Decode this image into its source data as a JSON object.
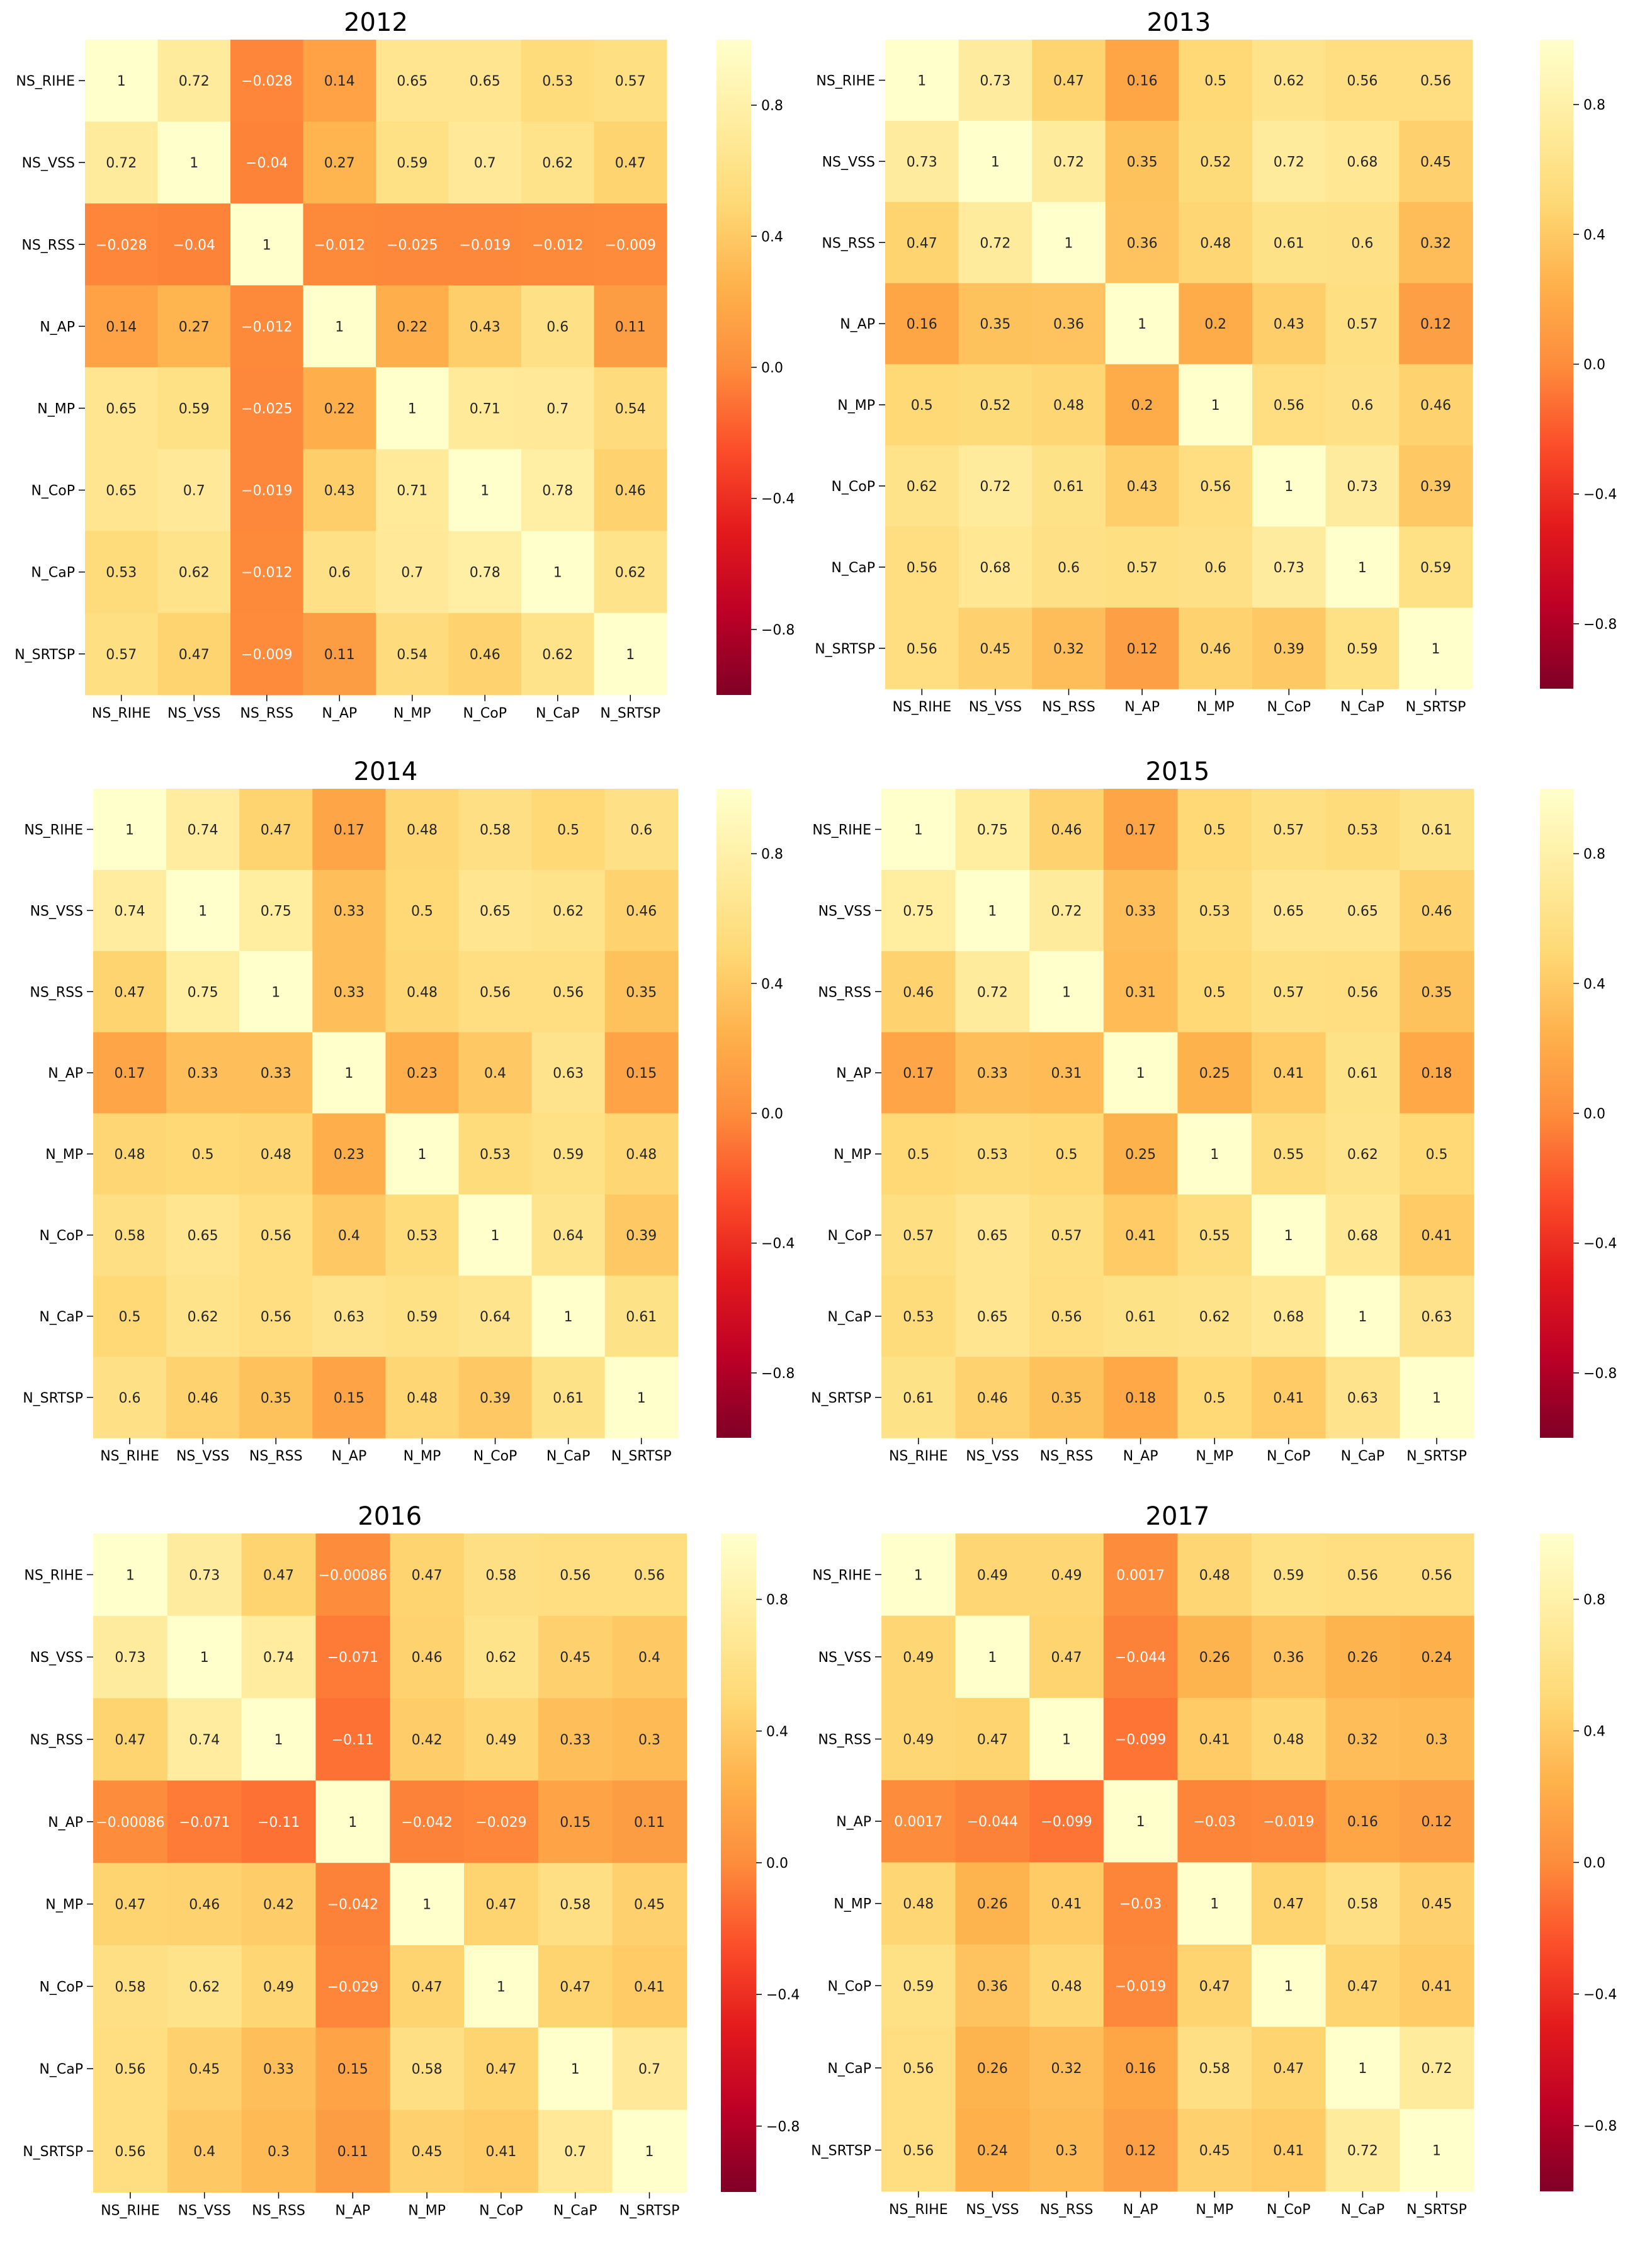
{
  "chart_data": [
    {
      "type": "heatmap",
      "title": "2012",
      "labels": [
        "NS_RIHE",
        "NS_VSS",
        "NS_RSS",
        "N_AP",
        "N_MP",
        "N_CoP",
        "N_CaP",
        "N_SRTSP"
      ],
      "values": [
        [
          "1",
          "0.72",
          "-0.028",
          "0.14",
          "0.65",
          "0.65",
          "0.53",
          "0.57"
        ],
        [
          "0.72",
          "1",
          "-0.04",
          "0.27",
          "0.59",
          "0.7",
          "0.62",
          "0.47"
        ],
        [
          "-0.028",
          "-0.04",
          "1",
          "-0.012",
          "-0.025",
          "-0.019",
          "-0.012",
          "-0.009"
        ],
        [
          "0.14",
          "0.27",
          "-0.012",
          "1",
          "0.22",
          "0.43",
          "0.6",
          "0.11"
        ],
        [
          "0.65",
          "0.59",
          "-0.025",
          "0.22",
          "1",
          "0.71",
          "0.7",
          "0.54"
        ],
        [
          "0.65",
          "0.7",
          "-0.019",
          "0.43",
          "0.71",
          "1",
          "0.78",
          "0.46"
        ],
        [
          "0.53",
          "0.62",
          "-0.012",
          "0.6",
          "0.7",
          "0.78",
          "1",
          "0.62"
        ],
        [
          "0.57",
          "0.47",
          "-0.009",
          "0.11",
          "0.54",
          "0.46",
          "0.62",
          "1"
        ]
      ],
      "colorbar": {
        "range": [
          -1,
          1
        ],
        "ticks": [
          "0.8",
          "0.4",
          "0.0",
          "−0.4",
          "−0.8"
        ],
        "tick_values": [
          0.8,
          0.4,
          0.0,
          -0.4,
          -0.8
        ],
        "colormap": "YlOrRd_r"
      }
    },
    {
      "type": "heatmap",
      "title": "2013",
      "labels": [
        "NS_RIHE",
        "NS_VSS",
        "NS_RSS",
        "N_AP",
        "N_MP",
        "N_CoP",
        "N_CaP",
        "N_SRTSP"
      ],
      "values": [
        [
          "1",
          "0.73",
          "0.47",
          "0.16",
          "0.5",
          "0.62",
          "0.56",
          "0.56"
        ],
        [
          "0.73",
          "1",
          "0.72",
          "0.35",
          "0.52",
          "0.72",
          "0.68",
          "0.45"
        ],
        [
          "0.47",
          "0.72",
          "1",
          "0.36",
          "0.48",
          "0.61",
          "0.6",
          "0.32"
        ],
        [
          "0.16",
          "0.35",
          "0.36",
          "1",
          "0.2",
          "0.43",
          "0.57",
          "0.12"
        ],
        [
          "0.5",
          "0.52",
          "0.48",
          "0.2",
          "1",
          "0.56",
          "0.6",
          "0.46"
        ],
        [
          "0.62",
          "0.72",
          "0.61",
          "0.43",
          "0.56",
          "1",
          "0.73",
          "0.39"
        ],
        [
          "0.56",
          "0.68",
          "0.6",
          "0.57",
          "0.6",
          "0.73",
          "1",
          "0.59"
        ],
        [
          "0.56",
          "0.45",
          "0.32",
          "0.12",
          "0.46",
          "0.39",
          "0.59",
          "1"
        ]
      ],
      "colorbar": {
        "range": [
          -1,
          1
        ],
        "ticks": [
          "0.8",
          "0.4",
          "0.0",
          "−0.4",
          "−0.8"
        ],
        "tick_values": [
          0.8,
          0.4,
          0.0,
          -0.4,
          -0.8
        ],
        "colormap": "YlOrRd_r"
      }
    },
    {
      "type": "heatmap",
      "title": "2014",
      "labels": [
        "NS_RIHE",
        "NS_VSS",
        "NS_RSS",
        "N_AP",
        "N_MP",
        "N_CoP",
        "N_CaP",
        "N_SRTSP"
      ],
      "values": [
        [
          "1",
          "0.74",
          "0.47",
          "0.17",
          "0.48",
          "0.58",
          "0.5",
          "0.6"
        ],
        [
          "0.74",
          "1",
          "0.75",
          "0.33",
          "0.5",
          "0.65",
          "0.62",
          "0.46"
        ],
        [
          "0.47",
          "0.75",
          "1",
          "0.33",
          "0.48",
          "0.56",
          "0.56",
          "0.35"
        ],
        [
          "0.17",
          "0.33",
          "0.33",
          "1",
          "0.23",
          "0.4",
          "0.63",
          "0.15"
        ],
        [
          "0.48",
          "0.5",
          "0.48",
          "0.23",
          "1",
          "0.53",
          "0.59",
          "0.48"
        ],
        [
          "0.58",
          "0.65",
          "0.56",
          "0.4",
          "0.53",
          "1",
          "0.64",
          "0.39"
        ],
        [
          "0.5",
          "0.62",
          "0.56",
          "0.63",
          "0.59",
          "0.64",
          "1",
          "0.61"
        ],
        [
          "0.6",
          "0.46",
          "0.35",
          "0.15",
          "0.48",
          "0.39",
          "0.61",
          "1"
        ]
      ],
      "colorbar": {
        "range": [
          -1,
          1
        ],
        "ticks": [
          "0.8",
          "0.4",
          "0.0",
          "−0.4",
          "−0.8"
        ],
        "tick_values": [
          0.8,
          0.4,
          0.0,
          -0.4,
          -0.8
        ],
        "colormap": "YlOrRd_r"
      }
    },
    {
      "type": "heatmap",
      "title": "2015",
      "labels": [
        "NS_RIHE",
        "NS_VSS",
        "NS_RSS",
        "N_AP",
        "N_MP",
        "N_CoP",
        "N_CaP",
        "N_SRTSP"
      ],
      "values": [
        [
          "1",
          "0.75",
          "0.46",
          "0.17",
          "0.5",
          "0.57",
          "0.53",
          "0.61"
        ],
        [
          "0.75",
          "1",
          "0.72",
          "0.33",
          "0.53",
          "0.65",
          "0.65",
          "0.46"
        ],
        [
          "0.46",
          "0.72",
          "1",
          "0.31",
          "0.5",
          "0.57",
          "0.56",
          "0.35"
        ],
        [
          "0.17",
          "0.33",
          "0.31",
          "1",
          "0.25",
          "0.41",
          "0.61",
          "0.18"
        ],
        [
          "0.5",
          "0.53",
          "0.5",
          "0.25",
          "1",
          "0.55",
          "0.62",
          "0.5"
        ],
        [
          "0.57",
          "0.65",
          "0.57",
          "0.41",
          "0.55",
          "1",
          "0.68",
          "0.41"
        ],
        [
          "0.53",
          "0.65",
          "0.56",
          "0.61",
          "0.62",
          "0.68",
          "1",
          "0.63"
        ],
        [
          "0.61",
          "0.46",
          "0.35",
          "0.18",
          "0.5",
          "0.41",
          "0.63",
          "1"
        ]
      ],
      "colorbar": {
        "range": [
          -1,
          1
        ],
        "ticks": [
          "0.8",
          "0.4",
          "0.0",
          "−0.4",
          "−0.8"
        ],
        "tick_values": [
          0.8,
          0.4,
          0.0,
          -0.4,
          -0.8
        ],
        "colormap": "YlOrRd_r"
      }
    },
    {
      "type": "heatmap",
      "title": "2016",
      "labels": [
        "NS_RIHE",
        "NS_VSS",
        "NS_RSS",
        "N_AP",
        "N_MP",
        "N_CoP",
        "N_CaP",
        "N_SRTSP"
      ],
      "values": [
        [
          "1",
          "0.73",
          "0.47",
          "-0.00086",
          "0.47",
          "0.58",
          "0.56",
          "0.56"
        ],
        [
          "0.73",
          "1",
          "0.74",
          "-0.071",
          "0.46",
          "0.62",
          "0.45",
          "0.4"
        ],
        [
          "0.47",
          "0.74",
          "1",
          "-0.11",
          "0.42",
          "0.49",
          "0.33",
          "0.3"
        ],
        [
          "-0.00086",
          "-0.071",
          "-0.11",
          "1",
          "-0.042",
          "-0.029",
          "0.15",
          "0.11"
        ],
        [
          "0.47",
          "0.46",
          "0.42",
          "-0.042",
          "1",
          "0.47",
          "0.58",
          "0.45"
        ],
        [
          "0.58",
          "0.62",
          "0.49",
          "-0.029",
          "0.47",
          "1",
          "0.47",
          "0.41"
        ],
        [
          "0.56",
          "0.45",
          "0.33",
          "0.15",
          "0.58",
          "0.47",
          "1",
          "0.7"
        ],
        [
          "0.56",
          "0.4",
          "0.3",
          "0.11",
          "0.45",
          "0.41",
          "0.7",
          "1"
        ]
      ],
      "colorbar": {
        "range": [
          -1,
          1
        ],
        "ticks": [
          "0.8",
          "0.4",
          "0.0",
          "−0.4",
          "−0.8"
        ],
        "tick_values": [
          0.8,
          0.4,
          0.0,
          -0.4,
          -0.8
        ],
        "colormap": "YlOrRd_r"
      }
    },
    {
      "type": "heatmap",
      "title": "2017",
      "labels": [
        "NS_RIHE",
        "NS_VSS",
        "NS_RSS",
        "N_AP",
        "N_MP",
        "N_CoP",
        "N_CaP",
        "N_SRTSP"
      ],
      "values": [
        [
          "1",
          "0.49",
          "0.49",
          "0.0017",
          "0.48",
          "0.59",
          "0.56",
          "0.56"
        ],
        [
          "0.49",
          "1",
          "0.47",
          "-0.044",
          "0.26",
          "0.36",
          "0.26",
          "0.24"
        ],
        [
          "0.49",
          "0.47",
          "1",
          "-0.099",
          "0.41",
          "0.48",
          "0.32",
          "0.3"
        ],
        [
          "0.0017",
          "-0.044",
          "-0.099",
          "1",
          "-0.03",
          "-0.019",
          "0.16",
          "0.12"
        ],
        [
          "0.48",
          "0.26",
          "0.41",
          "-0.03",
          "1",
          "0.47",
          "0.58",
          "0.45"
        ],
        [
          "0.59",
          "0.36",
          "0.48",
          "-0.019",
          "0.47",
          "1",
          "0.47",
          "0.41"
        ],
        [
          "0.56",
          "0.26",
          "0.32",
          "0.16",
          "0.58",
          "0.47",
          "1",
          "0.72"
        ],
        [
          "0.56",
          "0.24",
          "0.3",
          "0.12",
          "0.45",
          "0.41",
          "0.72",
          "1"
        ]
      ],
      "colorbar": {
        "range": [
          -1,
          1
        ],
        "ticks": [
          "0.8",
          "0.4",
          "0.0",
          "−0.4",
          "−0.8"
        ],
        "tick_values": [
          0.8,
          0.4,
          0.0,
          -0.4,
          -0.8
        ],
        "colormap": "YlOrRd_r"
      }
    }
  ]
}
